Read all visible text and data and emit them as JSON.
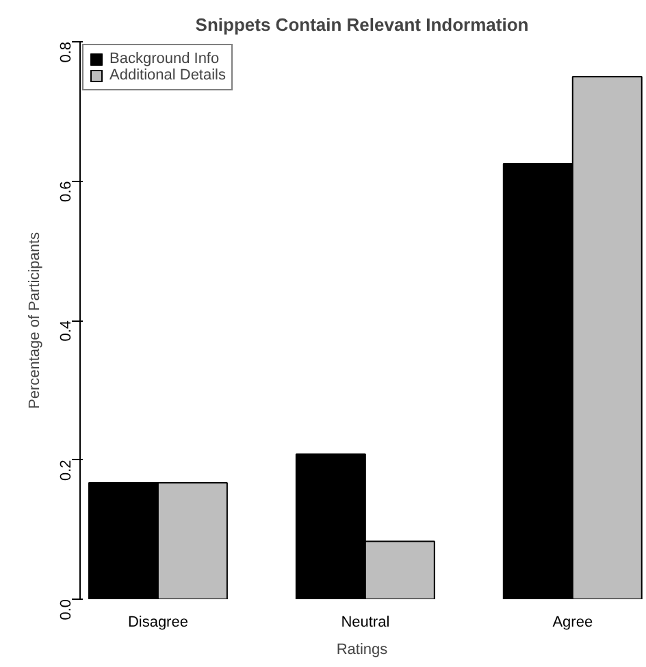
{
  "chart_data": {
    "type": "bar",
    "title": "Snippets Contain Relevant Indormation",
    "xlabel": "Ratings",
    "ylabel": "Percentage of Participants",
    "categories": [
      "Disagree",
      "Neutral",
      "Agree"
    ],
    "series": [
      {
        "name": "Background Info",
        "color": "#000000",
        "values": [
          0.167,
          0.208,
          0.625
        ]
      },
      {
        "name": "Additional Details",
        "color": "#bebebe",
        "values": [
          0.167,
          0.083,
          0.75
        ]
      }
    ],
    "ylim": [
      0,
      0.8
    ],
    "yticks": [
      {
        "value": 0,
        "label": "0.0"
      },
      {
        "value": 0.2,
        "label": "0.2"
      },
      {
        "value": 0.4,
        "label": "0.4"
      },
      {
        "value": 0.6,
        "label": "0.6"
      },
      {
        "value": 0.8,
        "label": "0.8"
      }
    ],
    "grid": false,
    "legend": "top left"
  }
}
